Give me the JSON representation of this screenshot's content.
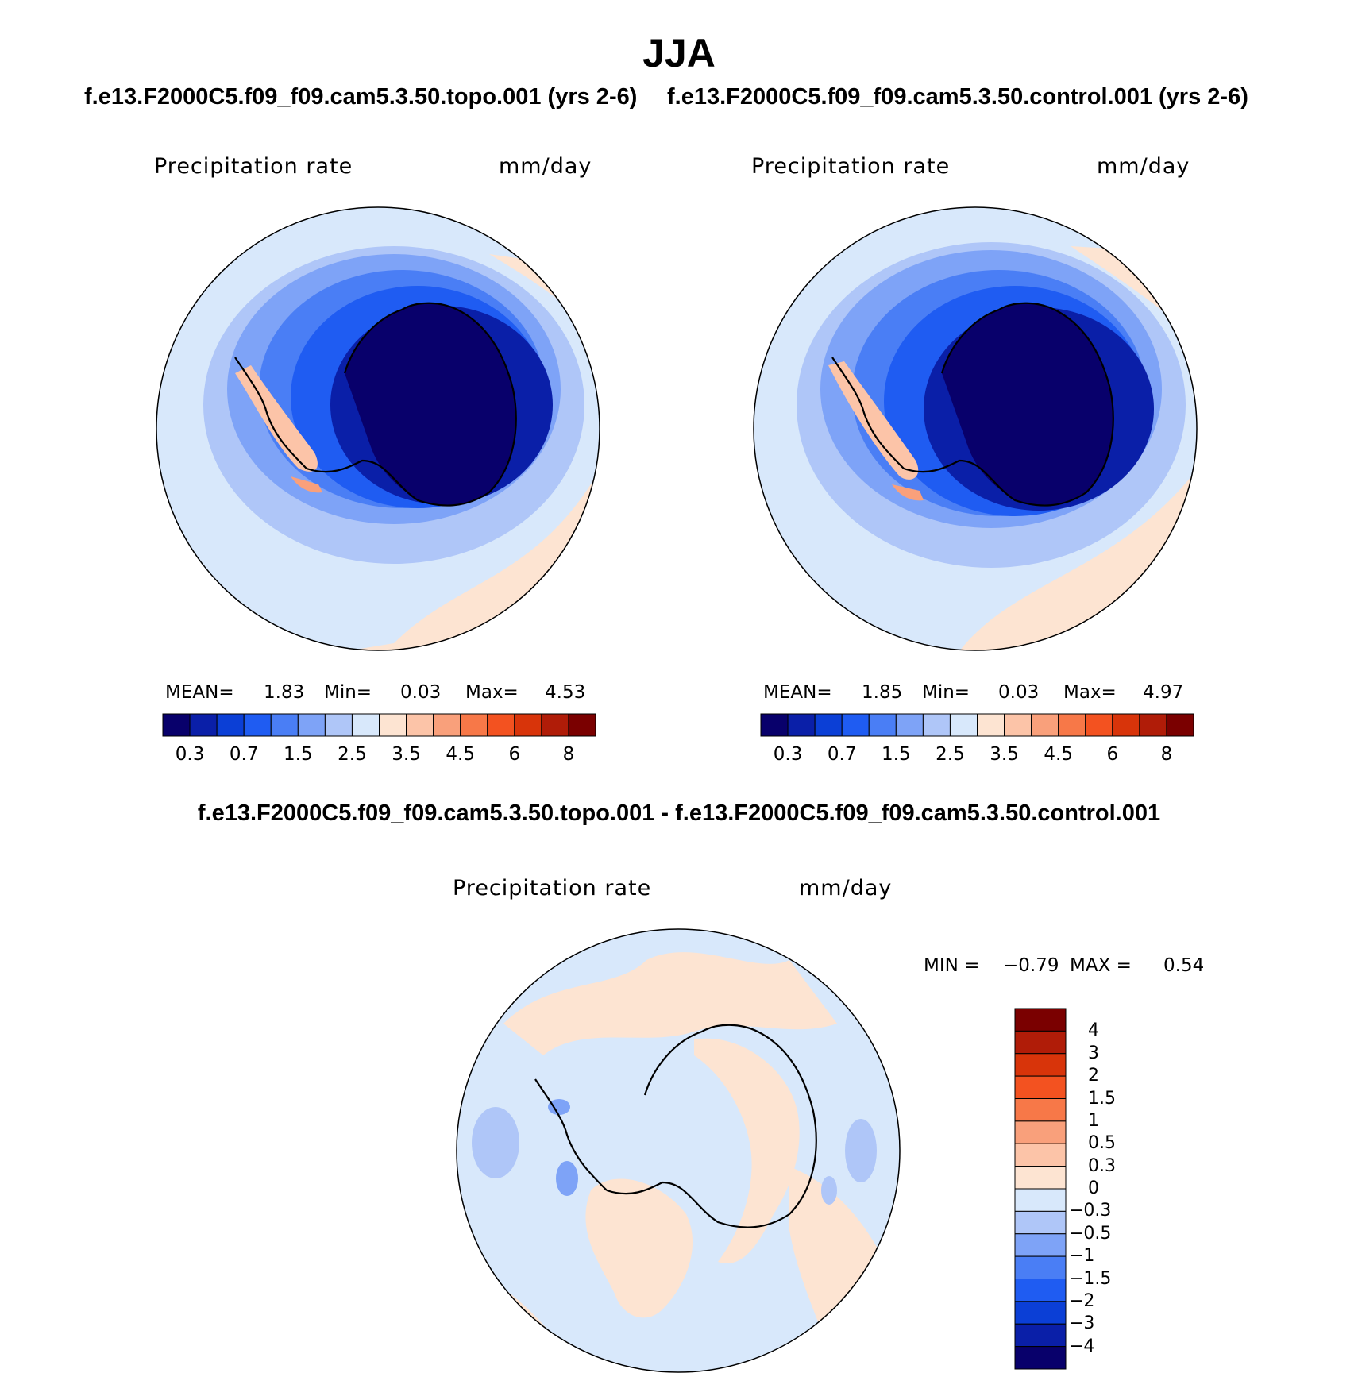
{
  "title": "JJA",
  "panels": [
    {
      "case": "f.e13.F2000C5.f09_f09.cam5.3.50.topo.001 (yrs 2-6)",
      "variable": "Precipitation  rate",
      "units": "mm/day",
      "stats": {
        "mean_label": "MEAN=",
        "mean": "1.83",
        "min_label": "Min=",
        "min": "0.03",
        "max_label": "Max=",
        "max": "4.53"
      }
    },
    {
      "case": "f.e13.F2000C5.f09_f09.cam5.3.50.control.001 (yrs 2-6)",
      "variable": "Precipitation  rate",
      "units": "mm/day",
      "stats": {
        "mean_label": "MEAN=",
        "mean": "1.85",
        "min_label": "Min=",
        "min": "0.03",
        "max_label": "Max=",
        "max": "4.97"
      }
    }
  ],
  "abs_colorbar": {
    "colors": [
      "#08006b",
      "#0a1fa8",
      "#0b3fd6",
      "#1f5cf2",
      "#4a7ef5",
      "#7ea3f7",
      "#afc6f8",
      "#d8e8fb",
      "#fde4d2",
      "#fcc4a8",
      "#f9a07b",
      "#f77848",
      "#f35220",
      "#d8340a",
      "#b01c08",
      "#7a0000"
    ],
    "labels": [
      "0.3",
      "0.7",
      "1.5",
      "2.5",
      "3.5",
      "4.5",
      "6",
      "8"
    ]
  },
  "difference": {
    "title": "f.e13.F2000C5.f09_f09.cam5.3.50.topo.001 - f.e13.F2000C5.f09_f09.cam5.3.50.control.001",
    "variable": "Precipitation  rate",
    "units": "mm/day",
    "minmax": {
      "min_label": "MIN =",
      "min": "−0.79",
      "max_label": "MAX =",
      "max": "0.54"
    },
    "colorbar": {
      "colors": [
        "#7a0000",
        "#b01c08",
        "#d8340a",
        "#f35220",
        "#f77848",
        "#f9a07b",
        "#fcc4a8",
        "#fde4d2",
        "#d8e8fb",
        "#afc6f8",
        "#7ea3f7",
        "#4a7ef5",
        "#1f5cf2",
        "#0b3fd6",
        "#0a1fa8",
        "#08006b"
      ],
      "labels": [
        "4",
        "3",
        "2",
        "1.5",
        "1",
        "0.5",
        "0.3",
        "0",
        "−0.3",
        "−0.5",
        "−1",
        "−1.5",
        "−2",
        "−3",
        "−4"
      ]
    }
  }
}
